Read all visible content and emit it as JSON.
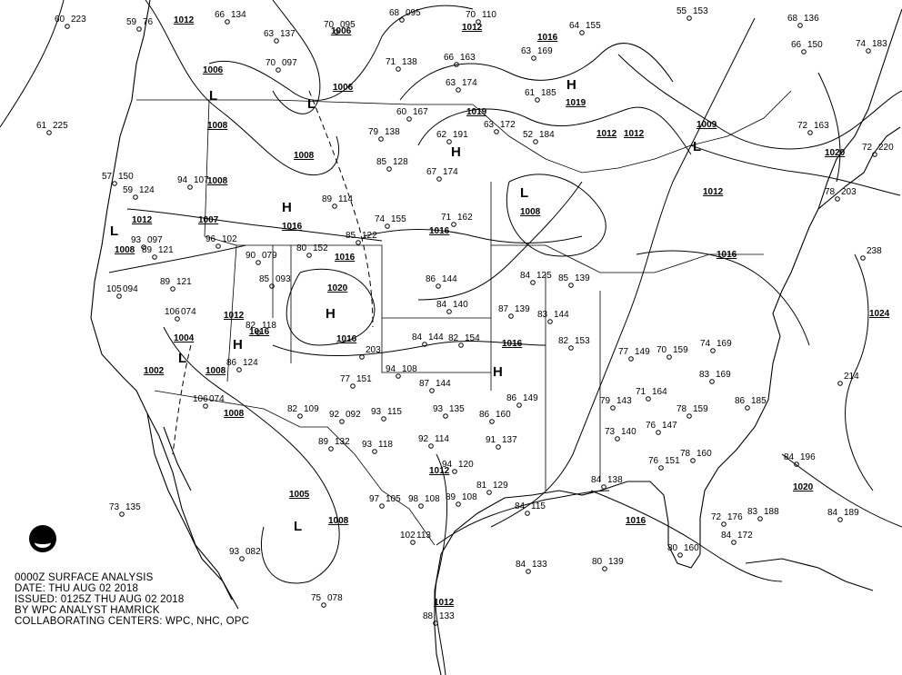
{
  "caption": {
    "line1": "0000Z SURFACE ANALYSIS",
    "line2": "DATE: THU AUG 02 2018",
    "line3": "ISSUED: 0125Z THU AUG 02 2018",
    "line4": "BY WPC ANALYST HAMRICK",
    "line5": "COLLABORATING CENTERS: WPC, NHC, OPC"
  },
  "logo": "NOAA",
  "colors": {
    "lines": "#000000",
    "background": "#ffffff"
  },
  "pressure_centers": [
    {
      "type": "H",
      "value": "1019"
    },
    {
      "type": "H",
      "value": "1016"
    },
    {
      "type": "H",
      "value": "1020"
    },
    {
      "type": "H",
      "value": ""
    },
    {
      "type": "H",
      "value": ""
    },
    {
      "type": "H",
      "value": ""
    },
    {
      "type": "L",
      "value": "1008"
    },
    {
      "type": "L",
      "value": "1006"
    },
    {
      "type": "L",
      "value": "1006"
    },
    {
      "type": "L",
      "value": "1002"
    },
    {
      "type": "L",
      "value": "1005"
    },
    {
      "type": "L",
      "value": "1008"
    },
    {
      "type": "L",
      "value": "1009"
    }
  ],
  "isobar_labels": [
    "1012",
    "1012",
    "1016",
    "1006",
    "1008",
    "1008",
    "1008",
    "1007",
    "1012",
    "1016",
    "1016",
    "1016",
    "1016",
    "1019",
    "1012",
    "1012",
    "1012",
    "1016",
    "1008",
    "1008",
    "1004",
    "1008",
    "1012",
    "1012",
    "1016",
    "1020",
    "1020",
    "1024",
    "1016",
    "1012"
  ],
  "stations": [
    {
      "t": "60",
      "p": "223"
    },
    {
      "t": "59",
      "p": "76"
    },
    {
      "t": "66",
      "p": "134"
    },
    {
      "t": "63",
      "p": "137"
    },
    {
      "t": "70",
      "p": "097"
    },
    {
      "t": "70",
      "p": "095"
    },
    {
      "t": "68",
      "p": "095"
    },
    {
      "t": "70",
      "p": "110"
    },
    {
      "t": "71",
      "p": "138"
    },
    {
      "t": "66",
      "p": "163"
    },
    {
      "t": "63",
      "p": "169"
    },
    {
      "t": "64",
      "p": "155"
    },
    {
      "t": "55",
      "p": "153"
    },
    {
      "t": "68",
      "p": "136"
    },
    {
      "t": "66",
      "p": "150"
    },
    {
      "t": "74",
      "p": "183"
    },
    {
      "t": "61",
      "p": "185"
    },
    {
      "t": "63",
      "p": "174"
    },
    {
      "t": "60",
      "p": "167"
    },
    {
      "t": "62",
      "p": "191"
    },
    {
      "t": "63",
      "p": "172"
    },
    {
      "t": "52",
      "p": "184"
    },
    {
      "t": "79",
      "p": "138"
    },
    {
      "t": "85",
      "p": "128"
    },
    {
      "t": "67",
      "p": "174"
    },
    {
      "t": "71",
      "p": "162"
    },
    {
      "t": "89",
      "p": "114"
    },
    {
      "t": "74",
      "p": "155"
    },
    {
      "t": "85",
      "p": "122"
    },
    {
      "t": "80",
      "p": "152"
    },
    {
      "t": "96",
      "p": "102"
    },
    {
      "t": "93",
      "p": "097"
    },
    {
      "t": "89",
      "p": "121"
    },
    {
      "t": "89",
      "p": "121"
    },
    {
      "t": "105",
      "p": "094"
    },
    {
      "t": "90",
      "p": "079"
    },
    {
      "t": "85",
      "p": "093"
    },
    {
      "t": "106",
      "p": "074"
    },
    {
      "t": "82",
      "p": "118"
    },
    {
      "t": "86",
      "p": "124"
    },
    {
      "t": "106",
      "p": "074"
    },
    {
      "t": "82",
      "p": "109"
    },
    {
      "t": "92",
      "p": "092"
    },
    {
      "t": "93",
      "p": "115"
    },
    {
      "t": "93",
      "p": "118"
    },
    {
      "t": "89",
      "p": "132"
    },
    {
      "t": "92",
      "p": "114"
    },
    {
      "t": "94",
      "p": "120"
    },
    {
      "t": "86",
      "p": "144"
    },
    {
      "t": "84",
      "p": "140"
    },
    {
      "t": "84",
      "p": "144"
    },
    {
      "t": "82",
      "p": "154"
    },
    {
      "t": "87",
      "p": "139"
    },
    {
      "t": "84",
      "p": "125"
    },
    {
      "t": "85",
      "p": "139"
    },
    {
      "t": "83",
      "p": "144"
    },
    {
      "t": "82",
      "p": "153"
    },
    {
      "t": "77",
      "p": "149"
    },
    {
      "t": "70",
      "p": "159"
    },
    {
      "t": "74",
      "p": "169"
    },
    {
      "t": "83",
      "p": "169"
    },
    {
      "t": "78",
      "p": "159"
    },
    {
      "t": "86",
      "p": "185"
    },
    {
      "t": "84",
      "p": "196"
    },
    {
      "t": "83",
      "p": "188"
    },
    {
      "t": "84",
      "p": "189"
    },
    {
      "t": "80",
      "p": "160"
    },
    {
      "t": "80",
      "p": "139"
    },
    {
      "t": "84",
      "p": "133"
    },
    {
      "t": "88",
      "p": "133"
    },
    {
      "t": "75",
      "p": "078"
    },
    {
      "t": "93",
      "p": "082"
    },
    {
      "t": "73",
      "p": "135"
    },
    {
      "t": "78",
      "p": "203"
    },
    {
      "t": "72",
      "p": "220"
    },
    {
      "t": "",
      "p": "238"
    },
    {
      "t": "72",
      "p": "163"
    },
    {
      "t": "",
      "p": "214"
    },
    {
      "t": "79",
      "p": "143"
    },
    {
      "t": "73",
      "p": "140"
    },
    {
      "t": "76",
      "p": "147"
    },
    {
      "t": "71",
      "p": "164"
    },
    {
      "t": "76",
      "p": "151"
    },
    {
      "t": "78",
      "p": "160"
    },
    {
      "t": "72",
      "p": "176"
    },
    {
      "t": "84",
      "p": "172"
    },
    {
      "t": "98",
      "p": "108"
    },
    {
      "t": "89",
      "p": "108"
    },
    {
      "t": "97",
      "p": "105"
    },
    {
      "t": "102",
      "p": "113"
    },
    {
      "t": "81",
      "p": "129"
    },
    {
      "t": "84",
      "p": "115"
    },
    {
      "t": "84",
      "p": "138"
    },
    {
      "t": "86",
      "p": "149"
    },
    {
      "t": "86",
      "p": "160"
    },
    {
      "t": "91",
      "p": "137"
    },
    {
      "t": "87",
      "p": "144"
    },
    {
      "t": "93",
      "p": "135"
    },
    {
      "t": "94",
      "p": "108"
    },
    {
      "t": "77",
      "p": "151"
    },
    {
      "t": "",
      "p": "203"
    },
    {
      "t": "61",
      "p": "225"
    },
    {
      "t": "57",
      "p": "150"
    },
    {
      "t": "59",
      "p": "124"
    },
    {
      "t": "94",
      "p": "107"
    }
  ]
}
